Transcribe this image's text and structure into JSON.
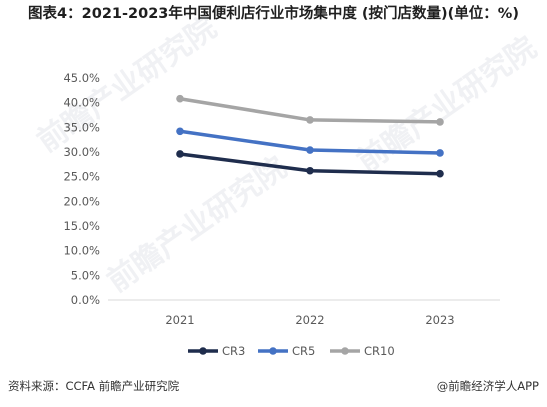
{
  "title": "图表4：2021-2023年中国便利店行业市场集中度 (按门店数量)(单位：%)",
  "source": "资料来源：CCFA 前瞻产业研究院",
  "brand": "@前瞻经济学人APP",
  "watermark": "前瞻产业研究院",
  "chart_data": {
    "type": "line",
    "x": [
      "2021",
      "2022",
      "2023"
    ],
    "ylim": [
      0,
      45
    ],
    "yticks": [
      "0.0%",
      "5.0%",
      "10.0%",
      "15.0%",
      "20.0%",
      "25.0%",
      "30.0%",
      "35.0%",
      "40.0%",
      "45.0%"
    ],
    "series": [
      {
        "name": "CR3",
        "color": "#1f2d4d",
        "values": [
          29.6,
          26.2,
          25.6
        ]
      },
      {
        "name": "CR5",
        "color": "#4472c4",
        "values": [
          34.2,
          30.4,
          29.8
        ]
      },
      {
        "name": "CR10",
        "color": "#a5a5a5",
        "values": [
          40.8,
          36.5,
          36.1
        ]
      }
    ],
    "legend_position": "bottom"
  }
}
